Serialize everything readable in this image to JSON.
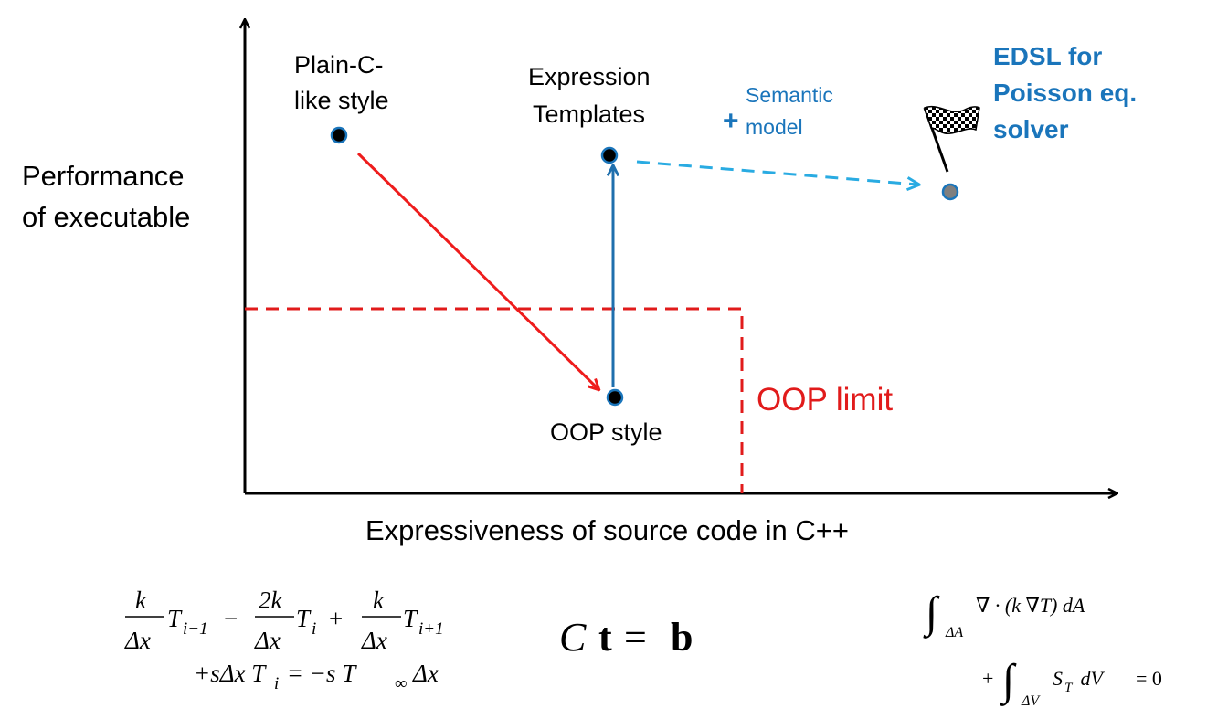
{
  "axes": {
    "y_label_line1": "Performance",
    "y_label_line2": "of executable",
    "x_label": "Expressiveness of source code in C++"
  },
  "nodes": {
    "plain_c": {
      "line1": "Plain-C-",
      "line2": "like style"
    },
    "expression_templates": {
      "line1": "Expression",
      "line2": "Templates"
    },
    "oop_style": {
      "label": "OOP style"
    },
    "edsl": {
      "line1": "EDSL for",
      "line2": "Poisson eq.",
      "line3": "solver"
    }
  },
  "annotations": {
    "plus": "+",
    "semantic_line1": "Semantic",
    "semantic_line2": "model",
    "oop_limit": "OOP limit"
  },
  "equations": {
    "discrete": {
      "k": "k",
      "dx": "Δx",
      "two_k": "2k",
      "T": "T",
      "sub_im1": "i−1",
      "sub_i": "i",
      "sub_ip1": "i+1",
      "minus": "−",
      "plus": "+",
      "line2": "+sΔx T",
      "line2_sub": "i",
      "line2_rest": " = −s T",
      "inf_sub": "∞",
      "line2_end": "Δx"
    },
    "matrix": {
      "C": "C",
      "t": "t",
      "eq": "=",
      "b": "b"
    },
    "integral": {
      "int": "∫",
      "sub_A": "ΔA",
      "body1": "∇ · (k ∇T) dA",
      "plus": "+",
      "sub_V": "ΔV",
      "body2": "S",
      "body2_sub": "T",
      "body2_rest": " dV",
      "eq_zero": "= 0"
    }
  },
  "colors": {
    "axis": "#000000",
    "red_arrow": "#ee1c1c",
    "blue_arrow": "#1f6fad",
    "dashed_blue": "#29abe2",
    "oop_limit": "#e11b1b",
    "edsl_text": "#1a75bb",
    "semantic_text": "#1a75bb",
    "node_fill": "#000000",
    "node_ring": "#1a75bb",
    "edsl_node": "#7f7f7f"
  }
}
